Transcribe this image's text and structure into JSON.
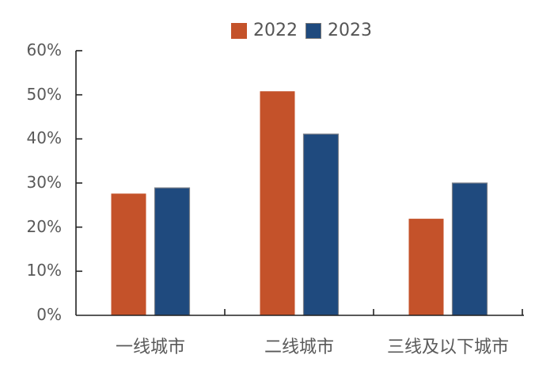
{
  "chart_data": {
    "type": "bar",
    "title": "",
    "xlabel": "",
    "ylabel": "",
    "categories": [
      "一线城市",
      "二线城市",
      "三线及以下城市"
    ],
    "series": [
      {
        "name": "2022",
        "color": "#C4522A",
        "values": [
          27.6,
          50.8,
          21.9
        ]
      },
      {
        "name": "2023",
        "color": "#1F4A7E",
        "values": [
          28.9,
          41.1,
          30.0
        ]
      }
    ],
    "ylim": [
      0,
      60
    ],
    "yticks": [
      "0%",
      "10%",
      "20%",
      "30%",
      "40%",
      "50%",
      "60%"
    ],
    "grid": false,
    "legend_position": "top"
  },
  "legend": {
    "items": [
      {
        "label": "2022",
        "color": "#C4522A"
      },
      {
        "label": "2023",
        "color": "#1F4A7E"
      }
    ]
  }
}
